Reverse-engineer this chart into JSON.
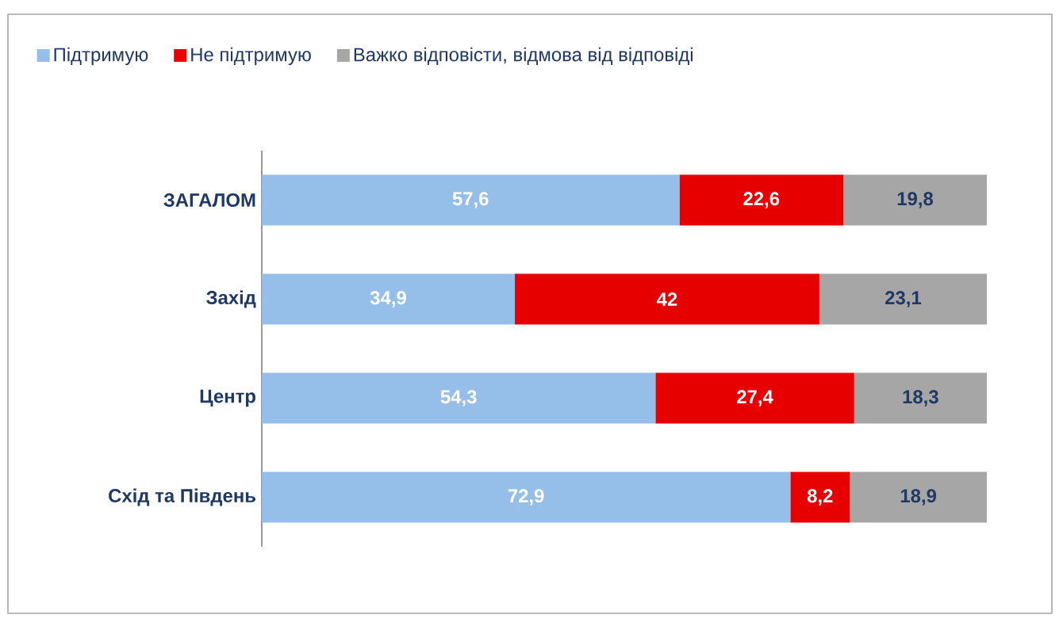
{
  "chart_data": {
    "type": "bar",
    "orientation": "horizontal",
    "stacked": true,
    "legend": "top",
    "tick_labels": "y",
    "xlim": [
      0,
      100
    ],
    "categories": [
      "ЗАГАЛОМ",
      "Захід",
      "Центр",
      "Схід та Південь"
    ],
    "series": [
      {
        "name": "Підтримую",
        "color": "#95bfe8",
        "values": [
          57.6,
          34.9,
          54.3,
          72.9
        ],
        "value_labels": [
          "57,6",
          "34,9",
          "54,3",
          "72,9"
        ]
      },
      {
        "name": "Не підтримую",
        "color": "#e60000",
        "values": [
          22.6,
          42,
          27.4,
          8.2
        ],
        "value_labels": [
          "22,6",
          "42",
          "27,4",
          "8,2"
        ]
      },
      {
        "name": "Важко відповісти, відмова від відповіді",
        "color": "#a6a6a6",
        "values": [
          19.8,
          23.1,
          18.3,
          18.9
        ],
        "value_labels": [
          "19,8",
          "23,1",
          "18,3",
          "18,9"
        ]
      }
    ]
  }
}
